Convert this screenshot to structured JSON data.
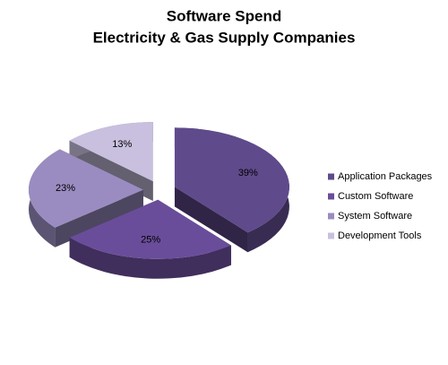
{
  "chart_data": {
    "type": "pie3d",
    "title": "Software Spend",
    "subtitle": "Electricity & Gas Supply Companies",
    "categories": [
      "Application Packages",
      "Custom Software",
      "System Software",
      "Development Tools"
    ],
    "values": [
      39,
      25,
      23,
      13
    ],
    "value_labels": [
      "39%",
      "25%",
      "23%",
      "13%"
    ],
    "colors": [
      "#5f4a8b",
      "#6a4d9a",
      "#9a8cc0",
      "#c8c0de"
    ],
    "legend": "right"
  }
}
